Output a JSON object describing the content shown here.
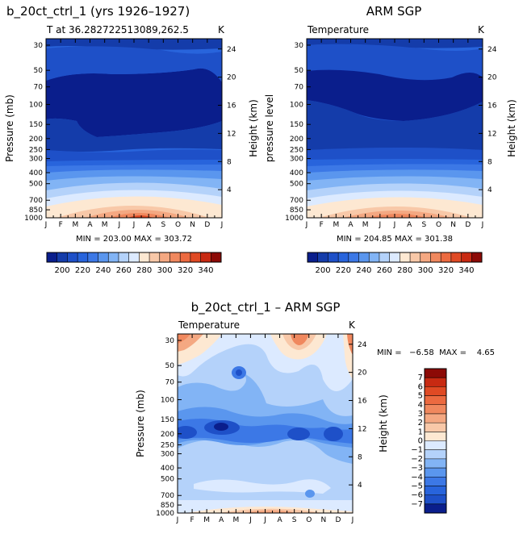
{
  "colors": {
    "scale": [
      "#0a1e8c",
      "#143caa",
      "#1e50c8",
      "#2864dc",
      "#3c78e6",
      "#5a96ee",
      "#82b4f5",
      "#b4d2fa",
      "#dceaff",
      "#fde8d2",
      "#f8c8a8",
      "#f4a882",
      "#f0885e",
      "#ec6a40",
      "#e04a24",
      "#c82a12",
      "#8c0a06"
    ]
  },
  "chart_data": [
    {
      "type": "heatmap",
      "title": "b_20ct_ctrl_1 (yrs 1926–1927)",
      "subtitle": "T at 36.282722513089,262.5",
      "corner_unit": "K",
      "ylabel": "Pressure (mb)",
      "ylabel_right": "Height (km)",
      "x_ticks": [
        "J",
        "F",
        "M",
        "A",
        "M",
        "J",
        "J",
        "A",
        "S",
        "O",
        "N",
        "D",
        "J"
      ],
      "y_ticks": [
        "30",
        "50",
        "70",
        "100",
        "150",
        "200",
        "250",
        "300",
        "400",
        "500",
        "700",
        "850",
        "1000"
      ],
      "y_ticks_right": [
        "24",
        "20",
        "16",
        "12",
        "8",
        "4"
      ],
      "stats": "MIN = 203.00 MAX = 303.72",
      "zmin": 203.0,
      "zmax": 303.72
    },
    {
      "type": "heatmap",
      "title": "ARM SGP",
      "subtitle": "Temperature",
      "corner_unit": "K",
      "ylabel": "pressure level",
      "ylabel_right": "Height (km)",
      "x_ticks": [
        "J",
        "F",
        "M",
        "A",
        "M",
        "J",
        "J",
        "A",
        "S",
        "O",
        "N",
        "D",
        "J"
      ],
      "y_ticks": [
        "30",
        "50",
        "70",
        "100",
        "150",
        "200",
        "250",
        "300",
        "400",
        "500",
        "700",
        "850",
        "1000"
      ],
      "y_ticks_right": [
        "24",
        "20",
        "16",
        "12",
        "8",
        "4"
      ],
      "stats": "MIN = 204.85 MAX = 301.38",
      "zmin": 204.85,
      "zmax": 301.38
    },
    {
      "type": "heatmap",
      "title": "b_20ct_ctrl_1  –  ARM SGP",
      "subtitle": "Temperature",
      "corner_unit": "K",
      "ylabel": "Pressure (mb)",
      "ylabel_right": "Height (km)",
      "x_ticks": [
        "J",
        "F",
        "M",
        "A",
        "M",
        "J",
        "J",
        "A",
        "S",
        "O",
        "N",
        "D",
        "J"
      ],
      "y_ticks": [
        "30",
        "50",
        "70",
        "100",
        "150",
        "200",
        "250",
        "300",
        "400",
        "500",
        "700",
        "850",
        "1000"
      ],
      "y_ticks_right": [
        "24",
        "20",
        "16",
        "12",
        "8",
        "4"
      ],
      "stats": "MIN =   −6.58  MAX =    4.65",
      "zmin": -6.58,
      "zmax": 4.65
    }
  ],
  "colorbar_top": {
    "labels": [
      "200",
      "220",
      "240",
      "260",
      "280",
      "300",
      "320",
      "340"
    ],
    "levels": [
      190,
      195,
      200,
      205,
      210,
      215,
      220,
      225,
      230,
      235,
      240,
      245,
      250,
      255,
      260,
      265,
      270,
      275,
      280,
      285,
      290,
      295,
      300,
      305,
      310,
      315,
      320,
      325,
      330,
      335,
      340,
      345,
      350
    ]
  },
  "colorbar_diff": {
    "labels": [
      "7",
      "6",
      "5",
      "4",
      "3",
      "2",
      "1",
      "0",
      "−1",
      "−2",
      "−3",
      "−4",
      "−5",
      "−6",
      "−7"
    ]
  }
}
